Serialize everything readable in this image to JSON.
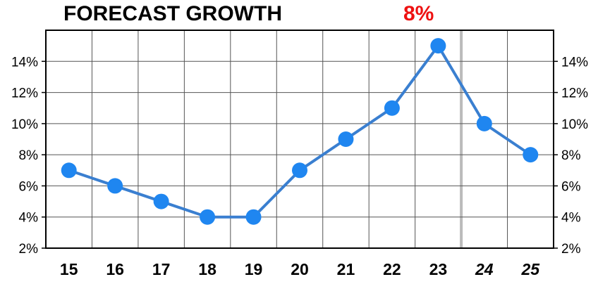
{
  "chart_data": {
    "type": "line",
    "title": "FORECAST GROWTH",
    "headline_value": "8%",
    "categories": [
      "15",
      "16",
      "17",
      "18",
      "19",
      "20",
      "21",
      "22",
      "23",
      "24",
      "25"
    ],
    "forecast_categories": [
      "24",
      "25"
    ],
    "values": [
      7,
      6,
      5,
      4,
      4,
      7,
      9,
      11,
      15,
      10,
      8
    ],
    "ylim": [
      2,
      16
    ],
    "yticks": [
      2,
      4,
      6,
      8,
      10,
      12,
      14
    ],
    "ytick_labels": [
      "2%",
      "4%",
      "6%",
      "8%",
      "10%",
      "12%",
      "14%"
    ],
    "grid": true,
    "colors": {
      "line": "#3a7fd0",
      "marker": "#1f86f0",
      "headline": "#ee1111",
      "grid": "#555555",
      "forecast_divider": "#bbbbbb"
    }
  }
}
